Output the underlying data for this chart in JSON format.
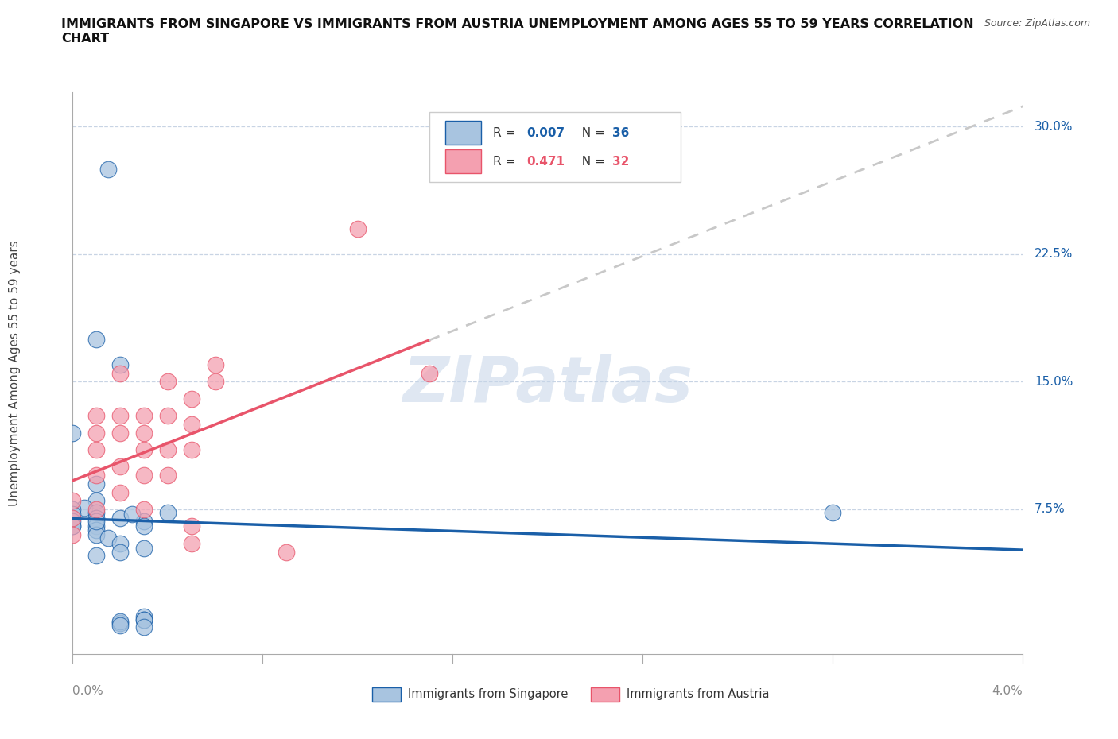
{
  "title": "IMMIGRANTS FROM SINGAPORE VS IMMIGRANTS FROM AUSTRIA UNEMPLOYMENT AMONG AGES 55 TO 59 YEARS CORRELATION\nCHART",
  "source": "Source: ZipAtlas.com",
  "ylabel": "Unemployment Among Ages 55 to 59 years",
  "xlim": [
    0.0,
    0.04
  ],
  "ylim": [
    -0.01,
    0.32
  ],
  "ytick_positions": [
    0.075,
    0.15,
    0.225,
    0.3
  ],
  "ytick_labels": [
    "7.5%",
    "15.0%",
    "22.5%",
    "30.0%"
  ],
  "xtick_positions": [
    0.0,
    0.04
  ],
  "xtick_labels": [
    "0.0%",
    "4.0%"
  ],
  "singapore_R": "0.007",
  "singapore_N": "36",
  "austria_R": "0.471",
  "austria_N": "32",
  "singapore_color": "#a8c4e0",
  "austria_color": "#f4a0b0",
  "singapore_line_color": "#1a5fa8",
  "austria_line_color": "#e8546a",
  "dashed_line_color": "#c8c8c8",
  "watermark": "ZIPatlas",
  "background_color": "#ffffff",
  "grid_color": "#c8d4e4",
  "singapore_x": [
    0.0015,
    0.001,
    0.002,
    0.0,
    0.001,
    0.001,
    0.0005,
    0.0,
    0.001,
    0.0,
    0.001,
    0.0,
    0.0,
    0.001,
    0.001,
    0.001,
    0.0015,
    0.002,
    0.003,
    0.002,
    0.001,
    0.002,
    0.003,
    0.0025,
    0.001,
    0.0,
    0.004,
    0.003,
    0.003,
    0.003,
    0.003,
    0.032,
    0.002,
    0.002,
    0.002,
    0.003
  ],
  "singapore_y": [
    0.275,
    0.175,
    0.16,
    0.12,
    0.09,
    0.08,
    0.076,
    0.075,
    0.073,
    0.072,
    0.07,
    0.068,
    0.065,
    0.065,
    0.063,
    0.06,
    0.058,
    0.055,
    0.052,
    0.05,
    0.048,
    0.07,
    0.068,
    0.072,
    0.068,
    0.065,
    0.073,
    0.065,
    0.012,
    0.01,
    0.01,
    0.073,
    0.008,
    0.009,
    0.007,
    0.006
  ],
  "austria_x": [
    0.0,
    0.0,
    0.0,
    0.001,
    0.001,
    0.001,
    0.001,
    0.001,
    0.002,
    0.002,
    0.002,
    0.002,
    0.002,
    0.003,
    0.003,
    0.003,
    0.003,
    0.003,
    0.004,
    0.004,
    0.004,
    0.004,
    0.005,
    0.005,
    0.005,
    0.005,
    0.005,
    0.006,
    0.006,
    0.009,
    0.012,
    0.015
  ],
  "austria_y": [
    0.08,
    0.07,
    0.06,
    0.13,
    0.12,
    0.11,
    0.095,
    0.075,
    0.155,
    0.13,
    0.12,
    0.1,
    0.085,
    0.13,
    0.12,
    0.11,
    0.095,
    0.075,
    0.15,
    0.13,
    0.11,
    0.095,
    0.14,
    0.125,
    0.11,
    0.065,
    0.055,
    0.16,
    0.15,
    0.05,
    0.24,
    0.155
  ]
}
